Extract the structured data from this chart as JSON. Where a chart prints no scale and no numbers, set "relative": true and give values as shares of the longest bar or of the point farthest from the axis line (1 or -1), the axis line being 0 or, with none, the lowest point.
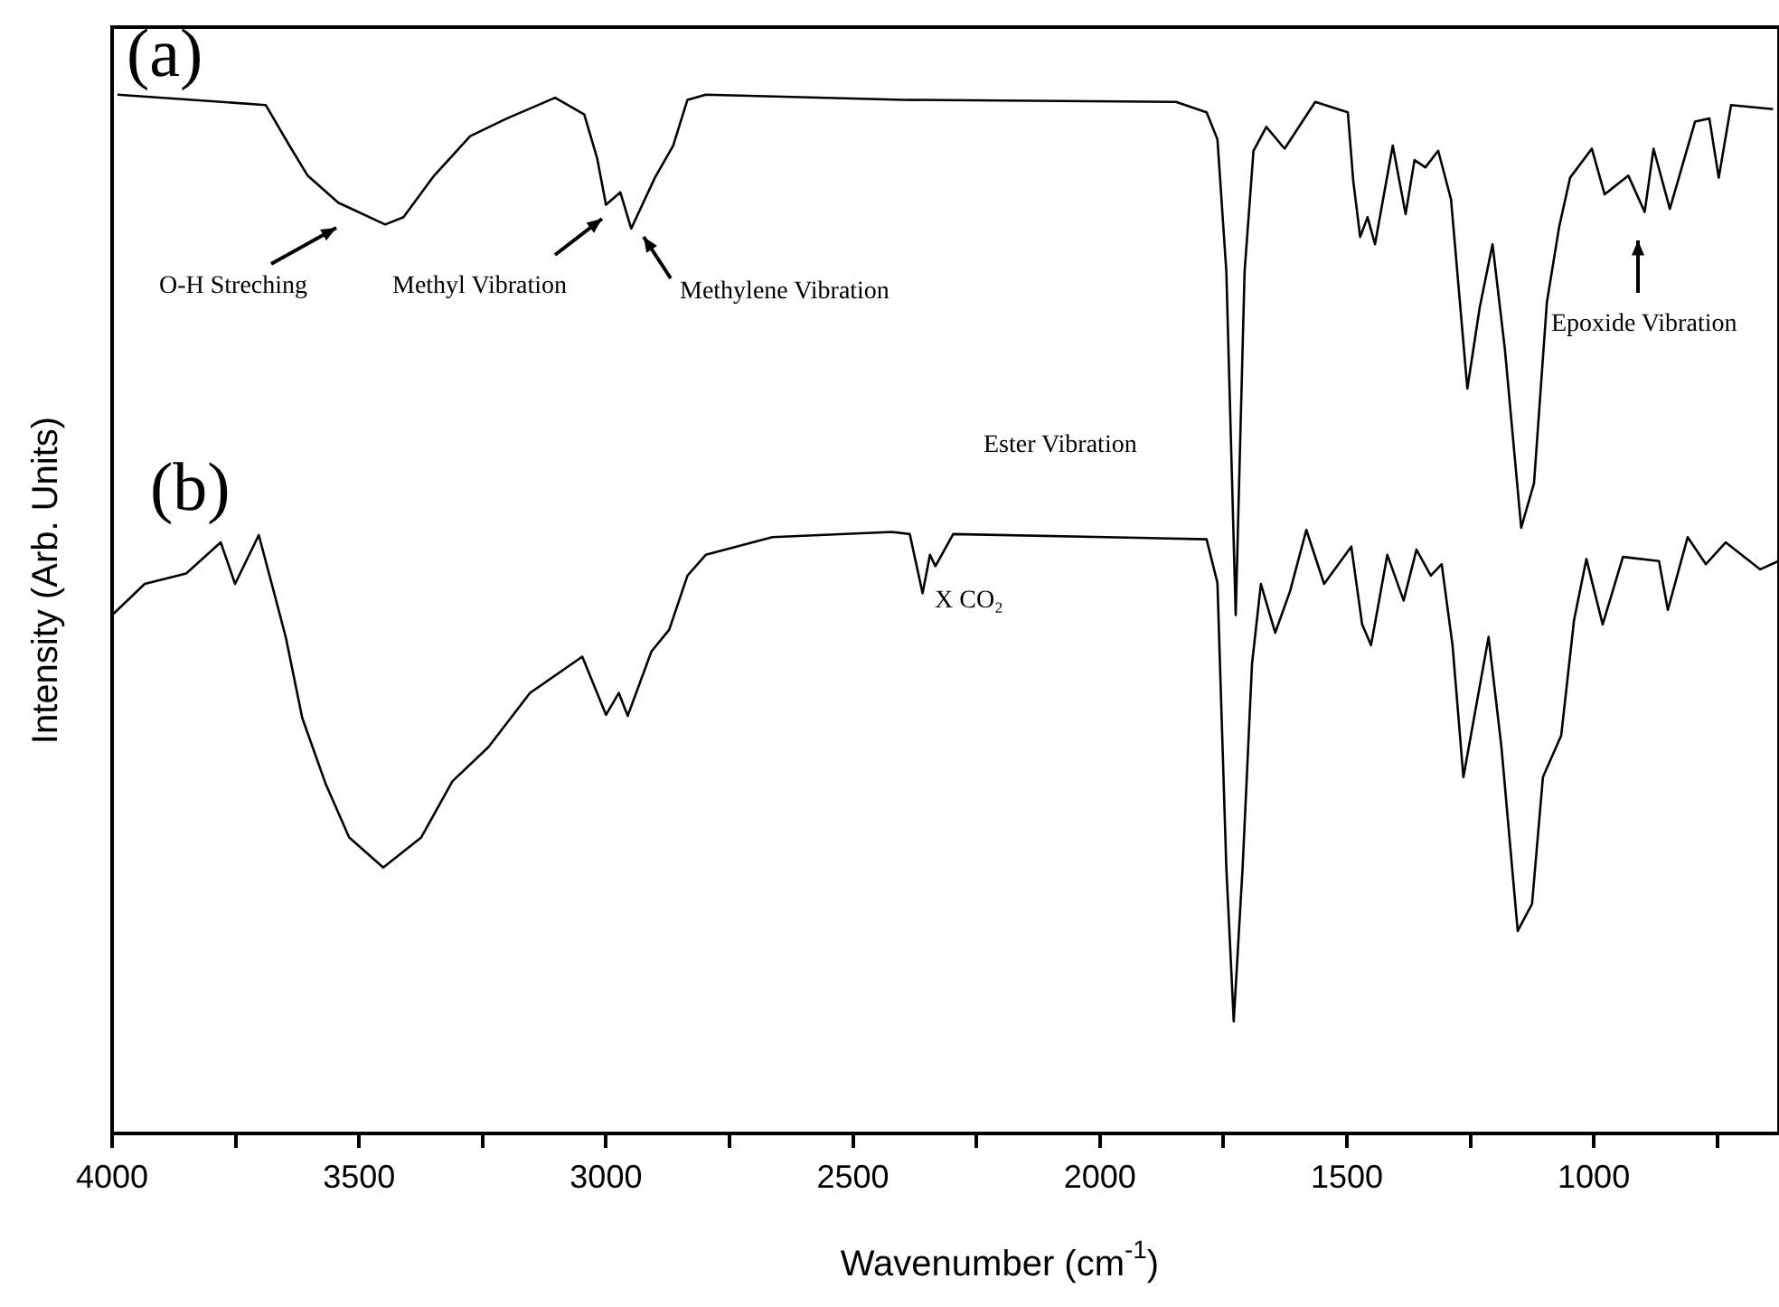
{
  "chart_data": {
    "type": "line",
    "relative": true,
    "xlabel": "Wavenumber (cm$^{-1}$)",
    "ylabel": "Intensity (Arb. Units)",
    "xlim": [
      4000,
      625
    ],
    "xticks": [
      4000,
      {
        "value": 3750,
        "label": null
      },
      3500,
      {
        "value": 3250,
        "label": null
      },
      3000,
      {
        "value": 2750,
        "label": null
      },
      2500,
      {
        "value": 2250,
        "label": null
      },
      2000,
      {
        "value": 1750,
        "label": null
      },
      1500,
      {
        "value": 1250,
        "label": null
      },
      1000,
      {
        "value": 750,
        "label": null
      }
    ],
    "grid": false,
    "legend": false,
    "line_style": "solid",
    "annotations": [
      "O-H Streching",
      "Methyl Vibration",
      "Methylene Vibration",
      "Epoxide Vibration",
      "Ester Vibration",
      "X CO₂"
    ],
    "series": [
      {
        "name": "(a)",
        "color": "#000000",
        "x": [
          3989,
          3689,
          3641,
          3604,
          3542,
          3447,
          3410,
          3348,
          3275,
          3201,
          3103,
          3044,
          3018,
          3000,
          2971,
          2949,
          2901,
          2864,
          2835,
          2798,
          2396,
          1846,
          1784,
          1762,
          1744,
          1725,
          1707,
          1689,
          1663,
          1626,
          1564,
          1498,
          1487,
          1473,
          1458,
          1443,
          1407,
          1381,
          1363,
          1341,
          1315,
          1289,
          1256,
          1231,
          1205,
          1180,
          1147,
          1121,
          1095,
          1070,
          1048,
          1004,
          978,
          930,
          897,
          879,
          846,
          795,
          766,
          747,
          722,
          637
        ],
        "values": [
          1,
          0.99,
          0.951,
          0.922,
          0.896,
          0.875,
          0.882,
          0.922,
          0.96,
          0.977,
          0.997,
          0.981,
          0.939,
          0.894,
          0.906,
          0.871,
          0.92,
          0.951,
          0.995,
          1,
          0.995,
          0.993,
          0.983,
          0.957,
          0.83,
          0.499,
          0.83,
          0.946,
          0.969,
          0.948,
          0.993,
          0.983,
          0.917,
          0.863,
          0.882,
          0.856,
          0.951,
          0.885,
          0.937,
          0.93,
          0.946,
          0.899,
          0.717,
          0.795,
          0.856,
          0.755,
          0.583,
          0.626,
          0.8,
          0.873,
          0.92,
          0.948,
          0.904,
          0.922,
          0.887,
          0.948,
          0.89,
          0.974,
          0.977,
          0.92,
          0.99,
          0.986
        ]
      },
      {
        "name": "(b)",
        "color": "#000000",
        "x": [
          4000,
          3934,
          3850,
          3780,
          3751,
          3703,
          3670,
          3648,
          3615,
          3568,
          3520,
          3451,
          3374,
          3311,
          3238,
          3154,
          3048,
          3000,
          2974,
          2956,
          2908,
          2872,
          2835,
          2798,
          2663,
          2421,
          2385,
          2359,
          2344,
          2333,
          2297,
          1784,
          1762,
          1744,
          1729,
          1711,
          1692,
          1674,
          1645,
          1615,
          1582,
          1546,
          1491,
          1469,
          1451,
          1418,
          1385,
          1359,
          1330,
          1308,
          1286,
          1264,
          1213,
          1187,
          1154,
          1125,
          1103,
          1066,
          1040,
          1015,
          982,
          941,
          868,
          850,
          810,
          773,
          733,
          663,
          626
        ],
        "values": [
          0.499,
          0.529,
          0.539,
          0.569,
          0.529,
          0.576,
          0.517,
          0.477,
          0.4,
          0.337,
          0.285,
          0.256,
          0.285,
          0.339,
          0.372,
          0.424,
          0.459,
          0.403,
          0.424,
          0.402,
          0.464,
          0.485,
          0.537,
          0.557,
          0.574,
          0.579,
          0.577,
          0.52,
          0.557,
          0.546,
          0.577,
          0.572,
          0.53,
          0.256,
          0.108,
          0.256,
          0.452,
          0.529,
          0.482,
          0.522,
          0.581,
          0.529,
          0.565,
          0.49,
          0.47,
          0.557,
          0.513,
          0.562,
          0.537,
          0.548,
          0.47,
          0.343,
          0.478,
          0.372,
          0.195,
          0.221,
          0.343,
          0.383,
          0.494,
          0.553,
          0.49,
          0.555,
          0.551,
          0.504,
          0.574,
          0.548,
          0.569,
          0.543,
          0.551
        ]
      }
    ]
  }
}
